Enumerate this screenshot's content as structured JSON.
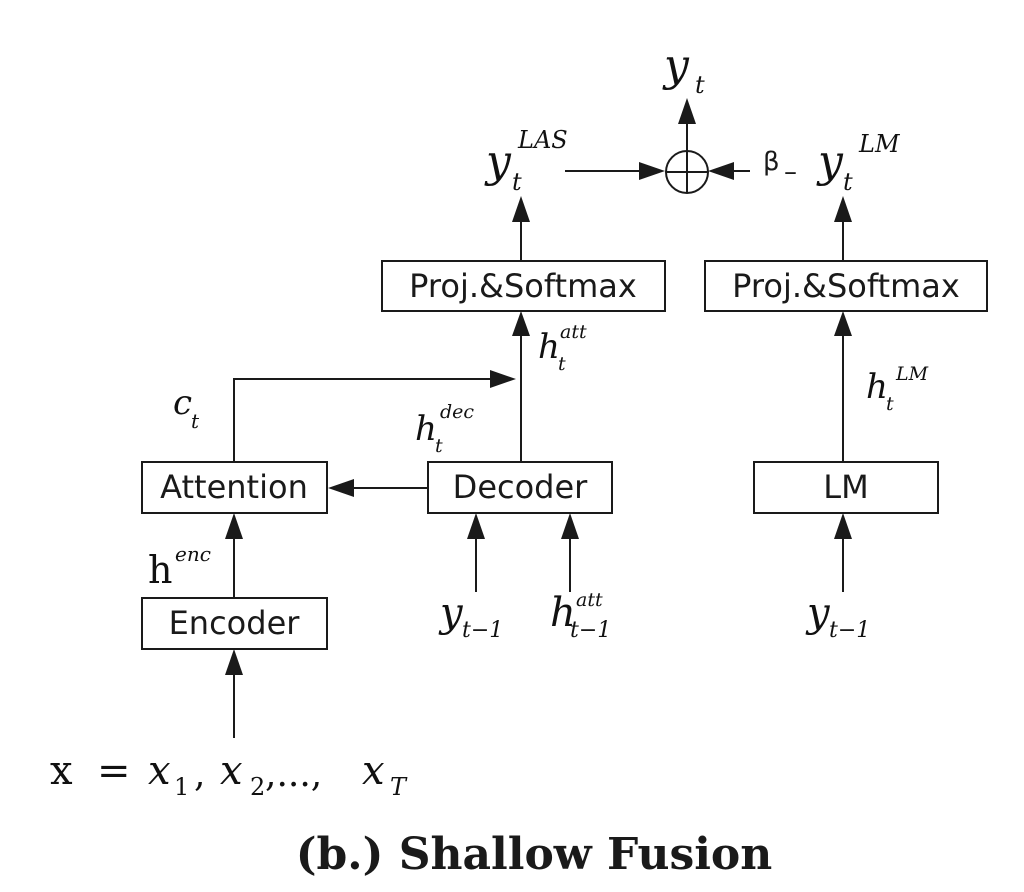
{
  "title": "(b.) Shallow Fusion",
  "boxes": {
    "proj_softmax_left": "Proj.&Softmax",
    "proj_softmax_right": "Proj.&Softmax",
    "attention": "Attention",
    "decoder": "Decoder",
    "encoder": "Encoder",
    "lm": "LM"
  },
  "labels": {
    "y_t": {
      "base": "y",
      "sub": "t"
    },
    "y_t_las": {
      "base": "y",
      "sub": "t",
      "sup": "LAS"
    },
    "y_t_lm": {
      "base": "y",
      "sub": "t",
      "sup": "LM"
    },
    "beta": "β",
    "minus": "–",
    "h_t_att": {
      "base": "h",
      "sub": "t",
      "sup": "att"
    },
    "c_t": {
      "base": "c",
      "sub": "t"
    },
    "h_t_dec": {
      "base": "h",
      "sub": "t",
      "sup": "dec"
    },
    "h_t_lm": {
      "base": "h",
      "sub": "t",
      "sup": "LM"
    },
    "h_enc": {
      "base": "h",
      "sup": "enc"
    },
    "y_t_minus_1_dec": {
      "base": "y",
      "sub": "t−1"
    },
    "h_t_minus_1_att": {
      "base": "h",
      "sub": "t−1",
      "sup": "att"
    },
    "y_t_minus_1_lm": {
      "base": "y",
      "sub": "t−1"
    },
    "input": {
      "x": "x",
      "eq": "=",
      "x1": "x",
      "s1": "1",
      "c1": ",",
      "x2": "x",
      "s2": "2",
      "dots": ",...,",
      "xT": "x",
      "sT": "T"
    }
  }
}
